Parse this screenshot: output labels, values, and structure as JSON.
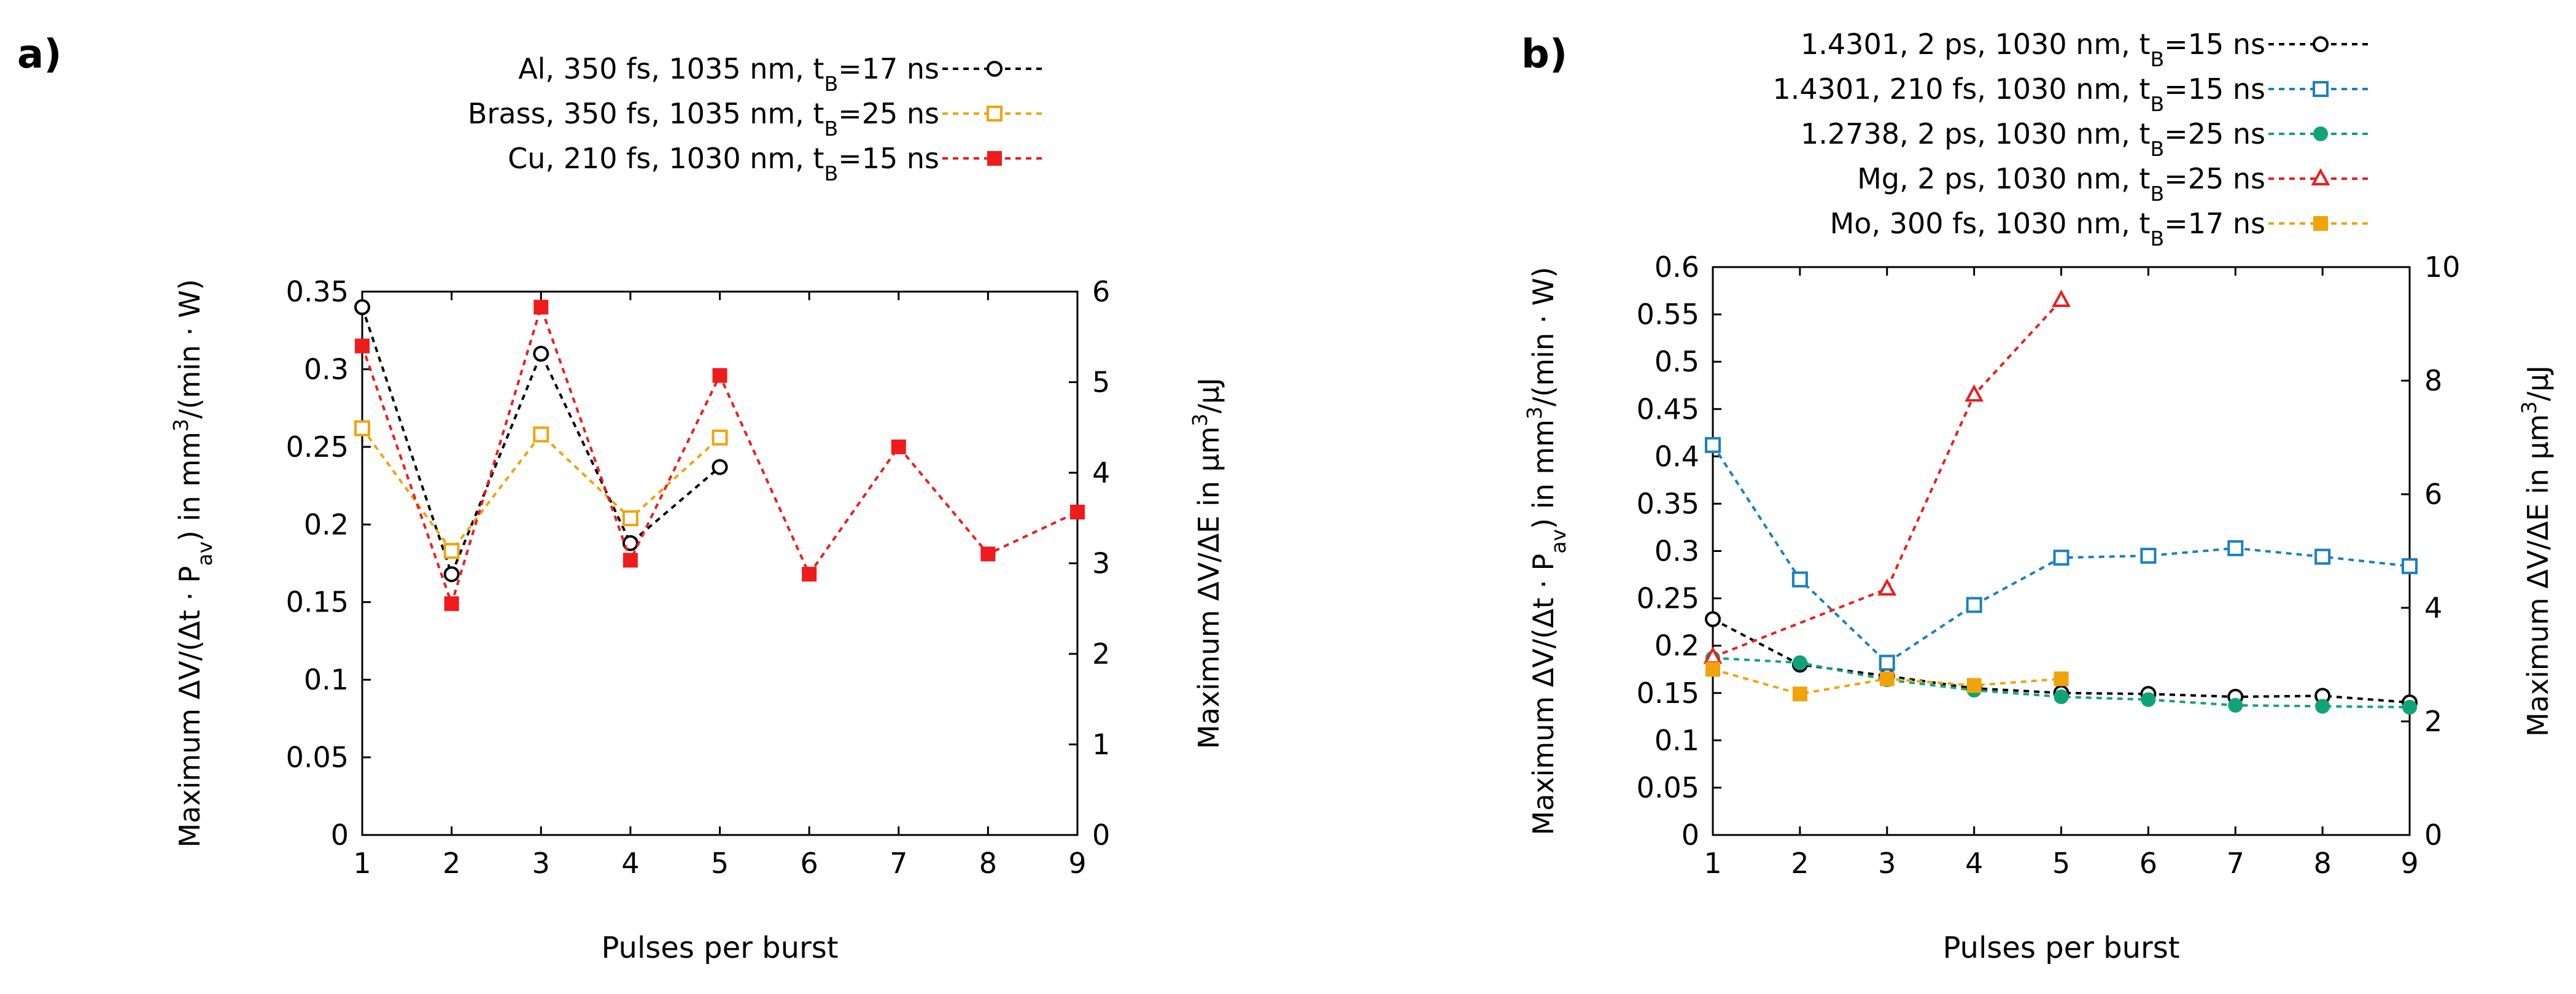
{
  "chart_data": [
    {
      "panel_label": "a)",
      "type": "line",
      "xlabel": "Pulses per burst",
      "ylabel": {
        "pre": "Maximum ΔV/(Δt · P",
        "sub": "av",
        "mid": ") in mm",
        "sup": "3",
        "post": "/(min · W)"
      },
      "y2label": {
        "pre": "Maximum  ΔV/ΔE in µm",
        "sup": "3",
        "post": "/µJ"
      },
      "xlim": [
        1,
        9
      ],
      "ylim": [
        0,
        0.35
      ],
      "y2lim": [
        0,
        6
      ],
      "x_ticks": [
        "1",
        "2",
        "3",
        "4",
        "5",
        "6",
        "7",
        "8",
        "9"
      ],
      "y_ticks": [
        "0",
        "0.05",
        "0.1",
        "0.15",
        "0.2",
        "0.25",
        "0.3",
        "0.35"
      ],
      "y2_ticks": [
        "0",
        "1",
        "2",
        "3",
        "4",
        "5",
        "6"
      ],
      "legend_position": "top-right, above plot",
      "series": [
        {
          "name": {
            "pre": "Al, 350 fs, 1035 nm, t",
            "sub": "B",
            "post": "=17 ns"
          },
          "color": "#000000",
          "marker": "circle-open",
          "x": [
            1,
            2,
            3,
            4,
            5
          ],
          "y": [
            0.34,
            0.168,
            0.31,
            0.188,
            0.237
          ]
        },
        {
          "name": {
            "pre": "Brass, 350 fs, 1035 nm, t",
            "sub": "B",
            "post": "=25 ns"
          },
          "color": "#f0a30a",
          "marker": "square-open",
          "x": [
            1,
            2,
            3,
            4,
            5
          ],
          "y": [
            0.262,
            0.183,
            0.258,
            0.204,
            0.256
          ]
        },
        {
          "name": {
            "pre": "Cu, 210 fs, 1030 nm, t",
            "sub": "B",
            "post": "=15 ns"
          },
          "color": "#ee1c1c",
          "marker": "square-filled",
          "x": [
            1,
            2,
            3,
            4,
            5,
            6,
            7,
            8,
            9
          ],
          "y": [
            0.315,
            0.149,
            0.34,
            0.177,
            0.296,
            0.168,
            0.25,
            0.181,
            0.208
          ]
        }
      ]
    },
    {
      "panel_label": "b)",
      "type": "line",
      "xlabel": "Pulses per burst",
      "ylabel": {
        "pre": "Maximum ΔV/(Δt · P",
        "sub": "av",
        "mid": ") in mm",
        "sup": "3",
        "post": "/(min · W)"
      },
      "y2label": {
        "pre": "Maximum  ΔV/ΔE in µm",
        "sup": "3",
        "post": "/µJ"
      },
      "xlim": [
        1,
        9
      ],
      "ylim": [
        0,
        0.6
      ],
      "y2lim": [
        0,
        10
      ],
      "x_ticks": [
        "1",
        "2",
        "3",
        "4",
        "5",
        "6",
        "7",
        "8",
        "9"
      ],
      "y_ticks": [
        "0",
        "0.05",
        "0.1",
        "0.15",
        "0.2",
        "0.25",
        "0.3",
        "0.35",
        "0.4",
        "0.45",
        "0.5",
        "0.55",
        "0.6"
      ],
      "y2_ticks": [
        "0",
        "2",
        "4",
        "6",
        "8",
        "10"
      ],
      "legend_position": "top-right, above plot",
      "series": [
        {
          "name": {
            "pre": "1.4301, 2 ps, 1030 nm, t",
            "sub": "B",
            "post": "=15 ns"
          },
          "color": "#000000",
          "marker": "circle-open",
          "x": [
            1,
            2,
            3,
            4,
            5,
            6,
            7,
            8,
            9
          ],
          "y": [
            0.228,
            0.18,
            0.168,
            0.155,
            0.15,
            0.149,
            0.146,
            0.147,
            0.14
          ]
        },
        {
          "name": {
            "pre": "1.4301, 210 fs, 1030 nm, t",
            "sub": "B",
            "post": "=15 ns"
          },
          "color": "#1a7fc1",
          "marker": "square-open",
          "x": [
            1,
            2,
            3,
            4,
            5,
            6,
            7,
            8,
            9
          ],
          "y": [
            0.412,
            0.27,
            0.182,
            0.243,
            0.293,
            0.295,
            0.303,
            0.294,
            0.284
          ]
        },
        {
          "name": {
            "pre": "1.2738, 2 ps, 1030 nm, t",
            "sub": "B",
            "post": "=25 ns"
          },
          "color": "#10a37a",
          "marker": "circle-filled",
          "x": [
            1,
            2,
            3,
            4,
            5,
            6,
            7,
            8,
            9
          ],
          "y": [
            0.187,
            0.182,
            0.164,
            0.153,
            0.146,
            0.143,
            0.137,
            0.136,
            0.135
          ]
        },
        {
          "name": {
            "pre": "Mg, 2 ps, 1030 nm, t",
            "sub": "B",
            "post": "=25 ns"
          },
          "color": "#ee1c1c",
          "marker": "triangle-open",
          "x": [
            1,
            3,
            4,
            5
          ],
          "y": [
            0.188,
            0.26,
            0.465,
            0.565
          ]
        },
        {
          "name": {
            "pre": "Mo, 300 fs, 1030 nm, t",
            "sub": "B",
            "post": "=17 ns"
          },
          "color": "#f0a30a",
          "marker": "square-filled",
          "x": [
            1,
            2,
            3,
            4,
            5
          ],
          "y": [
            0.175,
            0.149,
            0.165,
            0.158,
            0.165
          ]
        }
      ]
    }
  ]
}
